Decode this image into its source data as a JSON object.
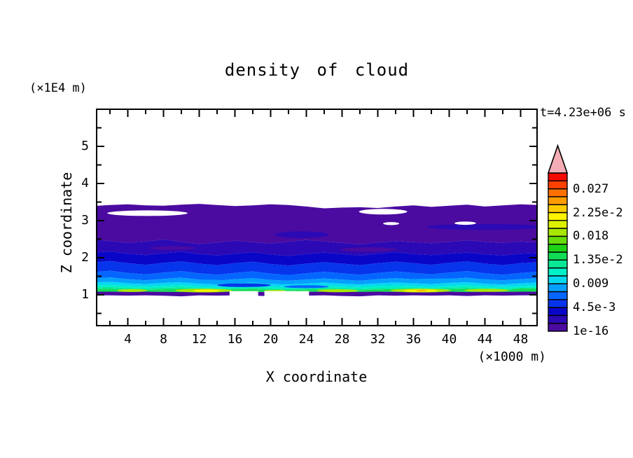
{
  "title": "density of cloud",
  "time_label": "t=4.23e+06 s",
  "x_axis": {
    "title": "X coordinate",
    "unit_label": "(×1000 m)",
    "ticks": [
      4,
      8,
      12,
      16,
      20,
      24,
      28,
      32,
      36,
      40,
      44,
      48
    ],
    "minor_ticks": [
      2,
      6,
      10,
      14,
      18,
      22,
      26,
      30,
      34,
      38,
      42,
      46,
      50
    ]
  },
  "z_axis": {
    "title": "Z coordinate",
    "unit_label": "(×1E4 m)",
    "ticks": [
      1,
      2,
      3,
      4,
      5
    ],
    "minor_ticks": [
      0.5,
      1.5,
      2.5,
      3.5,
      4.5,
      5.5
    ]
  },
  "chart_data": {
    "type": "heatmap",
    "title": "density of cloud",
    "xlabel": "X coordinate (×1000 m)",
    "ylabel": "Z coordinate (×1E4 m)",
    "time": "t=4.23e+06 s",
    "x_range": [
      0.5,
      49.8
    ],
    "z_range": [
      0.15,
      6.0
    ],
    "grid": false,
    "legend_position": "right",
    "palette": [
      "#4B0BA0",
      "#2B09B4",
      "#0A06C8",
      "#0635EB",
      "#0566FF",
      "#05A0FF",
      "#06D8F0",
      "#00F0C8",
      "#0AE896",
      "#12DC55",
      "#1ED215",
      "#66DC0A",
      "#A8E605",
      "#DCF000",
      "#FFF400",
      "#FFCC00",
      "#FF9C00",
      "#FF7000",
      "#FF4000",
      "#F50A00"
    ],
    "overflow_color": "#F5ADB5",
    "colorbar": {
      "labels": [
        "1e-16",
        "4.5e-3",
        "0.009",
        "1.35e-2",
        "0.018",
        "2.25e-2",
        "0.027"
      ],
      "label_every_n_bands": 3,
      "n_bands": 20,
      "band_interval": 0.0015,
      "min_level": 1e-16,
      "max_level": 0.03
    },
    "stations": [
      0,
      2,
      4,
      6,
      8,
      10,
      12,
      14,
      16,
      18,
      20,
      22,
      24,
      26,
      28,
      30,
      32,
      34,
      36,
      38,
      40,
      42,
      44,
      46,
      48,
      50
    ],
    "layers": [
      {
        "color": 0,
        "top": [
          3.39,
          3.42,
          3.44,
          3.41,
          3.4,
          3.43,
          3.45,
          3.42,
          3.39,
          3.41,
          3.44,
          3.42,
          3.38,
          3.33,
          3.35,
          3.36,
          3.34,
          3.38,
          3.41,
          3.37,
          3.4,
          3.43,
          3.38,
          3.41,
          3.44,
          3.42
        ]
      },
      {
        "color": 1,
        "top": [
          2.5,
          2.45,
          2.4,
          2.44,
          2.49,
          2.43,
          2.37,
          2.41,
          2.46,
          2.42,
          2.38,
          2.43,
          2.48,
          2.44,
          2.4,
          2.36,
          2.41,
          2.45,
          2.42,
          2.39,
          2.43,
          2.47,
          2.43,
          2.4,
          2.44,
          2.41
        ]
      },
      {
        "color": 2,
        "top": [
          2.13,
          2.17,
          2.11,
          2.07,
          2.12,
          2.16,
          2.1,
          2.06,
          2.11,
          2.15,
          2.09,
          2.05,
          2.1,
          2.14,
          2.1,
          2.06,
          2.11,
          2.15,
          2.1,
          2.07,
          2.11,
          2.14,
          2.09,
          2.06,
          2.11,
          2.13
        ]
      },
      {
        "color": 3,
        "top": [
          1.87,
          1.91,
          1.85,
          1.81,
          1.86,
          1.9,
          1.84,
          1.8,
          1.85,
          1.89,
          1.83,
          1.79,
          1.84,
          1.88,
          1.84,
          1.8,
          1.85,
          1.89,
          1.85,
          1.81,
          1.86,
          1.9,
          1.84,
          1.8,
          1.85,
          1.88
        ]
      },
      {
        "color": 4,
        "top": [
          1.61,
          1.65,
          1.59,
          1.55,
          1.6,
          1.64,
          1.58,
          1.54,
          1.59,
          1.63,
          1.57,
          1.53,
          1.58,
          1.62,
          1.58,
          1.54,
          1.59,
          1.63,
          1.59,
          1.55,
          1.6,
          1.64,
          1.58,
          1.54,
          1.59,
          1.62
        ]
      },
      {
        "color": 5,
        "top": [
          1.44,
          1.47,
          1.42,
          1.39,
          1.43,
          1.46,
          1.41,
          1.38,
          1.42,
          1.45,
          1.4,
          1.38,
          1.41,
          1.44,
          1.41,
          1.38,
          1.42,
          1.45,
          1.42,
          1.39,
          1.43,
          1.46,
          1.41,
          1.39,
          1.42,
          1.45
        ]
      },
      {
        "color": 6,
        "top": [
          1.33,
          1.35,
          1.31,
          1.29,
          1.32,
          1.34,
          1.3,
          1.28,
          1.31,
          1.33,
          1.29,
          1.28,
          1.3,
          1.33,
          1.3,
          1.28,
          1.31,
          1.33,
          1.31,
          1.29,
          1.32,
          1.34,
          1.3,
          1.28,
          1.31,
          1.33
        ]
      },
      {
        "color": 7,
        "top": [
          1.25,
          1.27,
          1.23,
          1.22,
          1.24,
          1.26,
          1.22,
          1.21,
          1.23,
          1.25,
          1.22,
          1.21,
          1.22,
          1.25,
          1.22,
          1.21,
          1.23,
          1.25,
          1.23,
          1.21,
          1.24,
          1.26,
          1.22,
          1.21,
          1.23,
          1.25
        ]
      },
      {
        "color": 8,
        "top": [
          1.2,
          1.21,
          1.18,
          1.17,
          1.19,
          1.2,
          1.17,
          1.16,
          1.18,
          1.19,
          1.17,
          1.16,
          1.17,
          1.19,
          1.17,
          1.16,
          1.18,
          1.19,
          1.18,
          1.16,
          1.19,
          1.2,
          1.17,
          1.16,
          1.18,
          1.19
        ]
      },
      {
        "color": 9,
        "top": [
          1.155,
          1.16,
          1.14,
          1.13,
          1.15,
          1.16,
          1.135,
          1.125,
          1.145,
          1.155,
          1.13,
          1.125,
          1.14,
          1.15,
          1.13,
          1.125,
          1.145,
          1.155,
          1.14,
          1.13,
          1.15,
          1.16,
          1.135,
          1.13,
          1.145,
          1.155
        ]
      },
      {
        "color": 0,
        "top": [
          1.085,
          1.085,
          1.08,
          1.085,
          1.08,
          1.075,
          1.085,
          1.08,
          1.085,
          1.08,
          1.075,
          1.085,
          1.08,
          1.085,
          1.075,
          1.08,
          1.085,
          1.08,
          1.085,
          1.08,
          1.085,
          1.075,
          1.085,
          1.08,
          1.085,
          1.085
        ]
      }
    ],
    "cloud_base": [
      0.99,
      0.985,
      0.98,
      0.985,
      0.975,
      0.96,
      0.985,
      0.98,
      0.985,
      0.975,
      0.965,
      0.985,
      0.98,
      0.985,
      0.97,
      0.96,
      0.985,
      0.975,
      0.985,
      0.98,
      0.985,
      0.97,
      0.985,
      0.98,
      0.985,
      0.99
    ],
    "patches": [
      {
        "color": 1,
        "x": 23.5,
        "z": 2.62,
        "rx": 3.0,
        "rz": 0.09
      },
      {
        "color": 1,
        "x": 44.0,
        "z": 2.83,
        "rx": 6.5,
        "rz": 0.08
      },
      {
        "color": 0,
        "x": 31.0,
        "z": 2.22,
        "rx": 3.2,
        "rz": 0.06
      },
      {
        "color": 0,
        "x": 9.0,
        "z": 2.26,
        "rx": 2.5,
        "rz": 0.05
      },
      {
        "color": 2,
        "x": 18.0,
        "z": 1.97,
        "rx": 5.0,
        "rz": 0.06
      },
      {
        "color": 2,
        "x": 44.0,
        "z": 1.95,
        "rx": 4.0,
        "rz": 0.05
      },
      {
        "color": 3,
        "x": 8.0,
        "z": 1.7,
        "rx": 4.0,
        "rz": 0.055
      },
      {
        "color": 3,
        "x": 30.0,
        "z": 1.68,
        "rx": 5.0,
        "rz": 0.055
      },
      {
        "color": 4,
        "x": 22.0,
        "z": 1.5,
        "rx": 4.0,
        "rz": 0.045
      },
      {
        "color": 4,
        "x": 47.0,
        "z": 1.47,
        "rx": 3.0,
        "rz": 0.04
      },
      {
        "color": 5,
        "x": 40.0,
        "z": 1.4,
        "rx": 5.0,
        "rz": 0.04
      },
      {
        "color": 5,
        "x": 12.0,
        "z": 1.37,
        "rx": 3.5,
        "rz": 0.04
      },
      {
        "color": 3,
        "x": 17.0,
        "z": 1.26,
        "rx": 3.0,
        "rz": 0.05
      },
      {
        "color": 4,
        "x": 24.0,
        "z": 1.22,
        "rx": 2.5,
        "rz": 0.04
      },
      {
        "color": 7,
        "x": 33.0,
        "z": 1.21,
        "rx": 3.0,
        "rz": 0.035
      },
      {
        "color": 12,
        "x": 4.5,
        "z": 1.115,
        "rx": 1.7,
        "rz": 0.038
      },
      {
        "color": 12,
        "x": 12.5,
        "z": 1.115,
        "rx": 3.2,
        "rz": 0.05
      },
      {
        "color": 14,
        "x": 12.8,
        "z": 1.112,
        "rx": 1.5,
        "rz": 0.03
      },
      {
        "color": 12,
        "x": 20.5,
        "z": 1.105,
        "rx": 1.2,
        "rz": 0.028
      },
      {
        "color": 12,
        "x": 27.5,
        "z": 1.11,
        "rx": 2.3,
        "rz": 0.04
      },
      {
        "color": 12,
        "x": 36.8,
        "z": 1.115,
        "rx": 3.4,
        "rz": 0.05
      },
      {
        "color": 14,
        "x": 36.8,
        "z": 1.112,
        "rx": 1.9,
        "rz": 0.032
      },
      {
        "color": 16,
        "x": 36.9,
        "z": 1.112,
        "rx": 0.6,
        "rz": 0.016
      },
      {
        "color": 12,
        "x": 44.2,
        "z": 1.12,
        "rx": 2.5,
        "rz": 0.04
      },
      {
        "color": 9,
        "x": 48.5,
        "z": 1.13,
        "rx": 1.5,
        "rz": 0.045
      }
    ],
    "holes": [
      {
        "x": 6.2,
        "z": 3.2,
        "rx": 4.5,
        "rz": 0.075
      },
      {
        "x": 32.6,
        "z": 3.24,
        "rx": 2.7,
        "rz": 0.075
      },
      {
        "x": 41.8,
        "z": 2.93,
        "rx": 1.2,
        "rz": 0.045
      },
      {
        "x": 33.5,
        "z": 2.92,
        "rx": 0.9,
        "rz": 0.04
      }
    ],
    "base_gaps": [
      [
        15.4,
        18.6
      ],
      [
        19.3,
        24.3
      ]
    ]
  }
}
